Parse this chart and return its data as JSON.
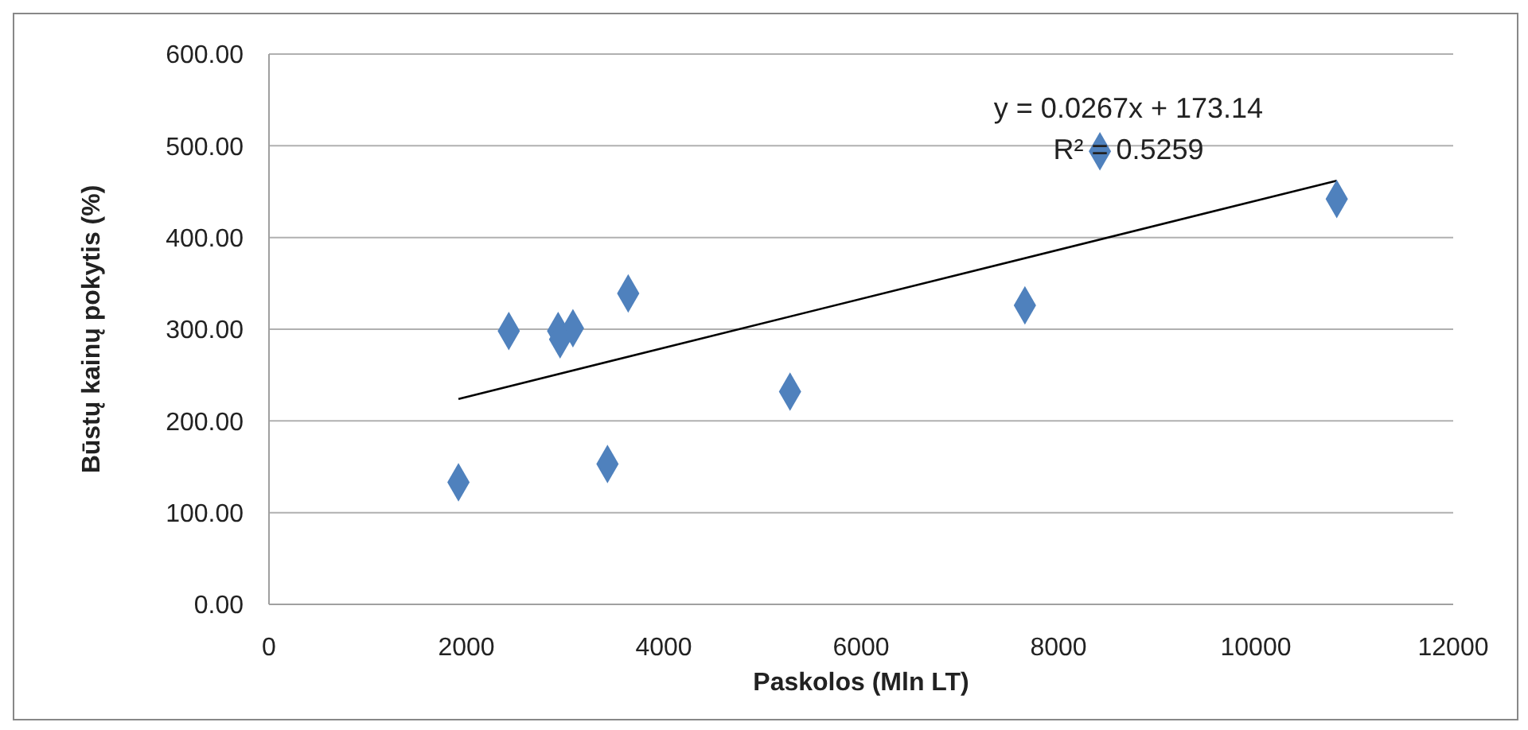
{
  "chart_data": {
    "type": "scatter",
    "xlabel": "Paskolos (Mln LT)",
    "ylabel": "Būstų kainų pokytis (%)",
    "annotations": [
      "y = 0.0267x + 173.14",
      "R² = 0.5259"
    ],
    "series": [
      {
        "color": "#4f81bd",
        "marker": "diamond",
        "x": [
          1920,
          2430,
          2930,
          3080,
          2950,
          3640,
          3430,
          5280,
          7660,
          8420,
          10820
        ],
        "values": [
          133,
          298,
          298,
          301,
          289,
          339,
          153,
          232,
          326,
          494,
          442
        ]
      },
      {
        "type": "line",
        "color": "#000000",
        "marker": "none",
        "x": [
          1920,
          10820
        ],
        "values": [
          224,
          462
        ]
      }
    ],
    "xlim": [
      0,
      12000
    ],
    "xticks": [
      0,
      2000,
      4000,
      6000,
      8000,
      10000,
      12000
    ],
    "ylim": [
      0,
      600
    ],
    "yticks": [
      {
        "value": 0,
        "label": "0.00"
      },
      {
        "value": 100,
        "label": "100.00"
      },
      {
        "value": 200,
        "label": "200.00"
      },
      {
        "value": 300,
        "label": "300.00"
      },
      {
        "value": 400,
        "label": "400.00"
      },
      {
        "value": 500,
        "label": "500.00"
      },
      {
        "value": 600,
        "label": "600.00"
      }
    ],
    "grid": "y",
    "legend": false
  }
}
